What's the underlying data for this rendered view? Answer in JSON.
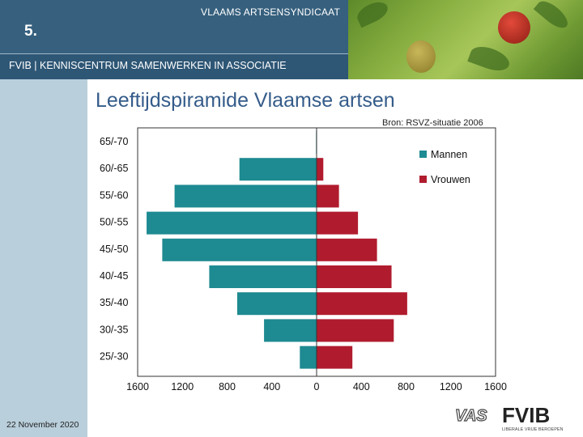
{
  "header": {
    "organization": "VLAAMS ARTSENSYNDICAAT",
    "slide_number": "5.",
    "subtitle": "FVIB | KENNISCENTRUM SAMENWERKEN IN ASSOCIATIE"
  },
  "slide": {
    "title": "Leeftijdspiramide Vlaamse artsen",
    "source": "Bron: RSVZ-situatie 2006",
    "date": "22 November 2020"
  },
  "logos": {
    "vas": "VAS",
    "fvib": "FVIB",
    "fvib_tagline": "LIBERALE VRIJE BEROEPEN"
  },
  "colors": {
    "mannen": "#1e8a91",
    "vrouwen": "#b01c2e",
    "header": "#36607e",
    "title": "#355c8a"
  },
  "chart_data": {
    "type": "bar",
    "orientation": "horizontal",
    "subtype": "population-pyramid",
    "categories": [
      "65/-70",
      "60/-65",
      "55/-60",
      "50/-55",
      "45/-50",
      "40/-45",
      "35/-40",
      "30/-35",
      "25/-30"
    ],
    "series": [
      {
        "name": "Mannen",
        "side": "left",
        "color": "#1e8a91",
        "values": [
          5,
          690,
          1270,
          1520,
          1380,
          960,
          710,
          470,
          150
        ]
      },
      {
        "name": "Vrouwen",
        "side": "right",
        "color": "#b01c2e",
        "values": [
          0,
          60,
          200,
          370,
          540,
          670,
          810,
          690,
          320
        ]
      }
    ],
    "x_ticks": [
      "1600",
      "1200",
      "800",
      "400",
      "0",
      "400",
      "800",
      "1200",
      "1600"
    ],
    "xlim": [
      -1600,
      1600
    ],
    "grid": false,
    "legend_position": "top-right"
  }
}
